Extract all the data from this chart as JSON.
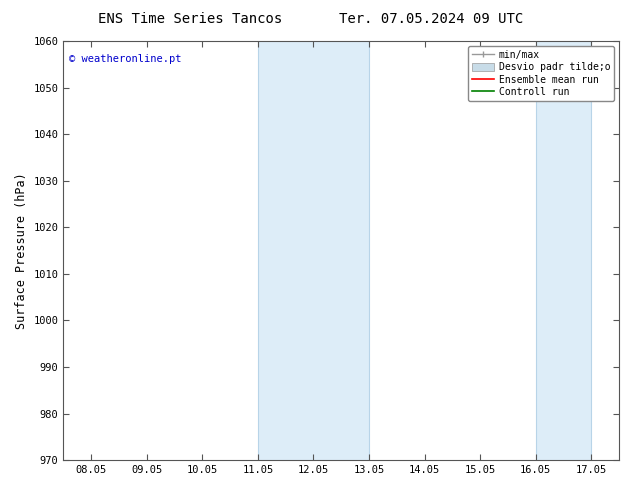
{
  "title_left": "ENS Time Series Tancos",
  "title_right": "Ter. 07.05.2024 09 UTC",
  "ylabel": "Surface Pressure (hPa)",
  "ylim": [
    970,
    1060
  ],
  "yticks": [
    970,
    980,
    990,
    1000,
    1010,
    1020,
    1030,
    1040,
    1050,
    1060
  ],
  "xlabels": [
    "08.05",
    "09.05",
    "10.05",
    "11.05",
    "12.05",
    "13.05",
    "14.05",
    "15.05",
    "16.05",
    "17.05"
  ],
  "x_positions": [
    0,
    1,
    2,
    3,
    4,
    5,
    6,
    7,
    8,
    9
  ],
  "shaded_regions": [
    {
      "xmin": 3,
      "xmax": 5,
      "color": "#ddedf8"
    },
    {
      "xmin": 8,
      "xmax": 9,
      "color": "#ddedf8"
    }
  ],
  "shaded_border_lines": [
    {
      "x": 3,
      "color": "#b8d4e8"
    },
    {
      "x": 5,
      "color": "#b8d4e8"
    },
    {
      "x": 8,
      "color": "#b8d4e8"
    },
    {
      "x": 9,
      "color": "#b8d4e8"
    }
  ],
  "copyright_text": "© weatheronline.pt",
  "copyright_color": "#0000cc",
  "legend_labels": [
    "min/max",
    "Desvio padr tilde;o",
    "Ensemble mean run",
    "Controll run"
  ],
  "legend_colors": [
    "#999999",
    "#c8dce8",
    "#ff0000",
    "#008000"
  ],
  "background_color": "#ffffff",
  "axis_color": "#555555",
  "title_fontsize": 10,
  "tick_fontsize": 7.5,
  "ylabel_fontsize": 8.5
}
